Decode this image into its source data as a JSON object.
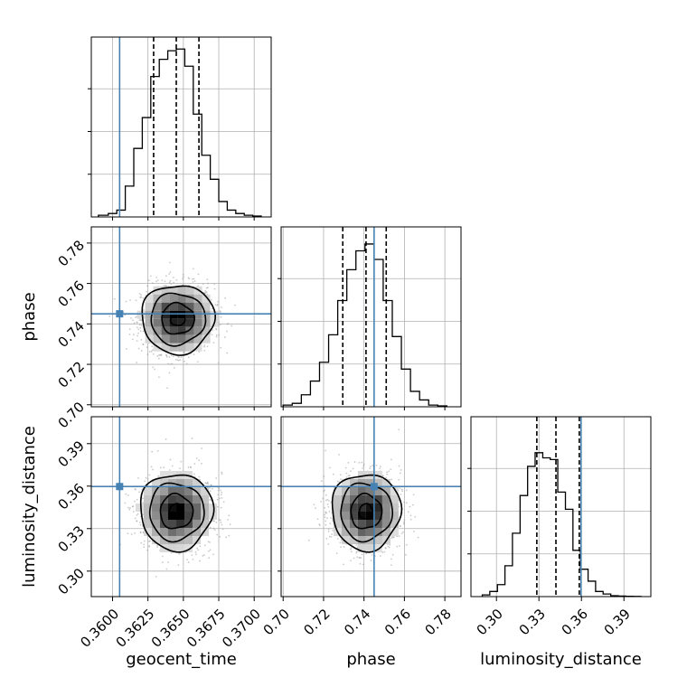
{
  "chart_data": {
    "type": "corner",
    "parameters": [
      {
        "name": "geocent_time",
        "label": "geocent_time",
        "truth": 0.3605,
        "range": [
          0.3585,
          0.3712
        ],
        "ticks": [
          0.36,
          0.3625,
          0.365,
          0.3675,
          0.37
        ],
        "tick_labels": [
          "0.3600",
          "0.3625",
          "0.3650",
          "0.3675",
          "0.3700"
        ],
        "quantiles": [
          0.3629,
          0.3645,
          0.3661
        ]
      },
      {
        "name": "phase",
        "label": "phase",
        "truth": 0.745,
        "range": [
          0.699,
          0.788
        ],
        "ticks": [
          0.7,
          0.72,
          0.74,
          0.76,
          0.78
        ],
        "tick_labels": [
          "0.70",
          "0.72",
          "0.74",
          "0.76",
          "0.78"
        ],
        "quantiles": [
          0.7295,
          0.741,
          0.751
        ]
      },
      {
        "name": "luminosity_distance",
        "label": "luminosity_distance",
        "truth": 0.3597,
        "range": [
          0.282,
          0.409
        ],
        "ticks": [
          0.3,
          0.33,
          0.36,
          0.39
        ],
        "tick_labels": [
          "0.30",
          "0.33",
          "0.36",
          "0.39"
        ],
        "quantiles": [
          0.3285,
          0.342,
          0.3585
        ]
      }
    ],
    "histograms": [
      {
        "parameter": "geocent_time",
        "edges": [
          0.359,
          0.3597,
          0.3603,
          0.3609,
          0.3615,
          0.3621,
          0.3627,
          0.3633,
          0.3639,
          0.3645,
          0.3651,
          0.3657,
          0.3663,
          0.3669,
          0.3675,
          0.3681,
          0.3687,
          0.3693,
          0.3699,
          0.3705
        ],
        "counts": [
          0.01,
          0.02,
          0.04,
          0.18,
          0.4,
          0.58,
          0.82,
          0.92,
          0.97,
          0.98,
          0.88,
          0.6,
          0.36,
          0.22,
          0.09,
          0.04,
          0.02,
          0.01,
          0.005
        ]
      },
      {
        "parameter": "phase",
        "edges": [
          0.7,
          0.7045,
          0.709,
          0.7135,
          0.718,
          0.7225,
          0.727,
          0.7315,
          0.736,
          0.7405,
          0.745,
          0.7495,
          0.754,
          0.7585,
          0.763,
          0.7675,
          0.772,
          0.7765,
          0.781
        ],
        "counts": [
          0.01,
          0.02,
          0.07,
          0.15,
          0.26,
          0.42,
          0.62,
          0.8,
          0.91,
          0.95,
          0.86,
          0.62,
          0.41,
          0.22,
          0.09,
          0.04,
          0.01,
          0.005
        ]
      },
      {
        "parameter": "luminosity_distance",
        "edges": [
          0.29,
          0.2953,
          0.3007,
          0.306,
          0.3113,
          0.3167,
          0.322,
          0.3273,
          0.3327,
          0.338,
          0.3433,
          0.3487,
          0.354,
          0.3593,
          0.3647,
          0.37,
          0.3753,
          0.3807,
          0.386,
          0.3913,
          0.3967,
          0.402
        ],
        "counts": [
          0.01,
          0.03,
          0.07,
          0.18,
          0.37,
          0.59,
          0.76,
          0.84,
          0.81,
          0.8,
          0.61,
          0.51,
          0.27,
          0.16,
          0.09,
          0.03,
          0.015,
          0.005,
          0.003,
          0.002,
          0.001
        ]
      }
    ],
    "contours": [
      {
        "x": "geocent_time",
        "y": "phase",
        "center": [
          0.3646,
          0.7425
        ],
        "sigma": [
          0.00128,
          0.0085
        ],
        "levels": [
          0.4,
          0.9,
          1.5,
          2.0
        ]
      },
      {
        "x": "geocent_time",
        "y": "luminosity_distance",
        "center": [
          0.3645,
          0.342
        ],
        "sigma": [
          0.00128,
          0.0135
        ],
        "levels": [
          0.4,
          0.9,
          1.5,
          2.0
        ]
      },
      {
        "x": "phase",
        "y": "luminosity_distance",
        "center": [
          0.741,
          0.342
        ],
        "sigma": [
          0.0085,
          0.0135
        ],
        "levels": [
          0.4,
          0.9,
          1.5,
          2.0
        ]
      }
    ],
    "grid": true,
    "colors": {
      "truth": "#4682b4",
      "hist": "#000000",
      "grid": "#b0b0b0",
      "scatter": "#9e9e9e"
    }
  }
}
